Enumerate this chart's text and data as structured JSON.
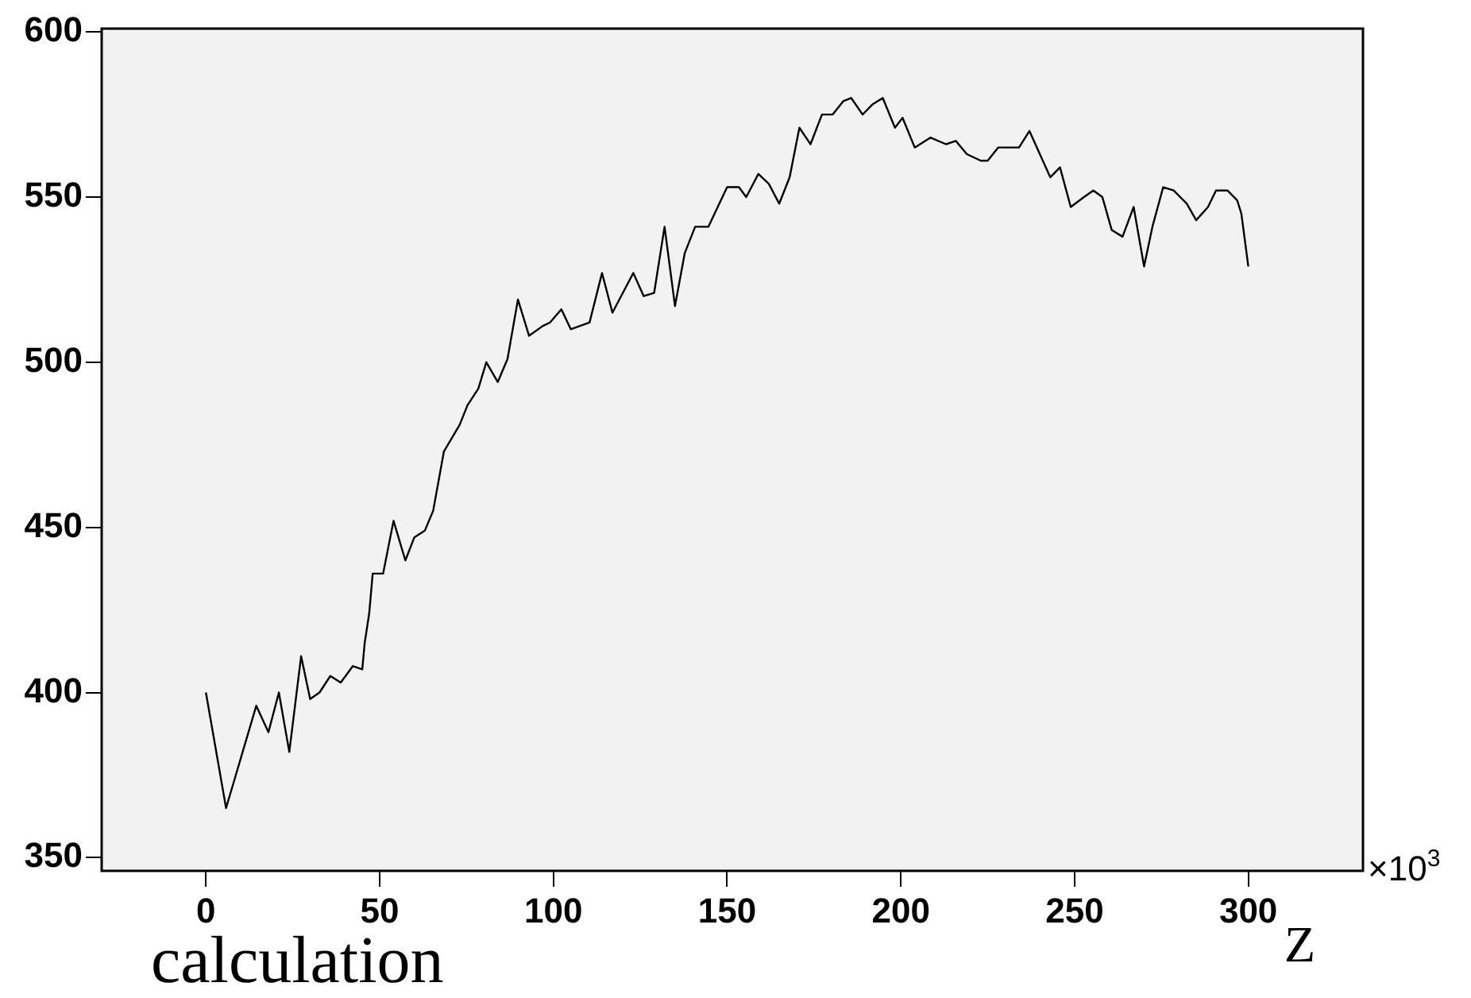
{
  "chart_data": {
    "type": "line",
    "xlabel": "Z",
    "annotations": [
      "×10$^{3}$",
      "calculation"
    ],
    "xlim": [
      -30,
      333
    ],
    "ylim": [
      346,
      601
    ],
    "xticks": [
      0,
      50,
      100,
      150,
      200,
      250,
      300
    ],
    "yticks": [
      350,
      400,
      450,
      500,
      550,
      600
    ],
    "grid": false,
    "legend": false,
    "marker": "none",
    "line_style": "solid",
    "series": [
      {
        "color": "#000000",
        "x": [
          0,
          5.8,
          14.5,
          18,
          21,
          24,
          27.4,
          30,
          32.7,
          35.8,
          38.8,
          42.3,
          45,
          45.7,
          47,
          48,
          51,
          54,
          57.4,
          60,
          63,
          65.4,
          68.5,
          73,
          75.3,
          78.4,
          80.7,
          84,
          86.8,
          89.8,
          93,
          97,
          99,
          102.3,
          105,
          110.4,
          114,
          117,
          120,
          123,
          126,
          129,
          132,
          135,
          137.8,
          140.8,
          144.6,
          150,
          153.4,
          155.5,
          159,
          162,
          165,
          168,
          170.8,
          174,
          177.3,
          180.4,
          183.4,
          185.7,
          189,
          191.8,
          194.8,
          198.3,
          200.5,
          204,
          208.5,
          213,
          215.8,
          219,
          223,
          225,
          228,
          234,
          237,
          243,
          245.8,
          248.9,
          252.7,
          255.4,
          258,
          260.7,
          263.8,
          267,
          270,
          272.4,
          275.5,
          278.5,
          282.3,
          285,
          288.4,
          290.7,
          294,
          296.8,
          298,
          300
        ],
        "values": [
          400,
          365,
          396,
          388,
          400,
          382,
          411,
          398,
          400,
          405,
          403,
          408,
          407,
          415,
          424,
          436,
          436,
          452,
          440,
          447,
          449,
          455,
          473,
          481,
          487,
          492,
          500,
          494,
          501,
          519,
          508,
          511,
          512,
          516,
          510,
          512,
          527,
          515,
          521,
          527,
          520,
          521,
          541,
          517,
          533,
          541,
          541,
          553,
          553,
          550,
          557,
          554,
          548,
          556,
          571,
          566,
          575,
          575,
          579,
          580,
          575,
          578,
          580,
          571,
          574,
          565,
          568,
          566,
          567,
          563,
          561,
          561,
          565,
          565,
          570,
          556,
          559,
          547,
          550,
          552,
          550,
          540,
          538,
          547,
          529,
          541,
          553,
          552,
          548,
          543,
          547,
          552,
          552,
          549,
          545,
          529
        ]
      }
    ]
  }
}
